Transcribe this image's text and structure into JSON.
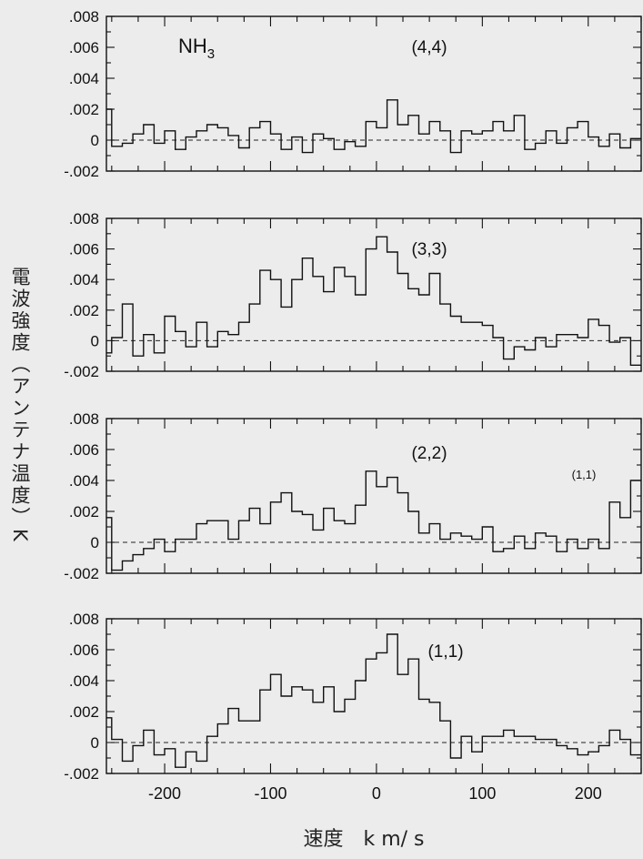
{
  "ylabel": "電波強度（アンテナ温度）K",
  "xlabel": "速度　k m/ s",
  "molecule_label": {
    "base": "NH",
    "subscript": "3"
  },
  "extra_annotation": "(1,1)",
  "x_tick_labels": [
    "-200",
    "-100",
    "0",
    "100",
    "200"
  ],
  "y_tick_labels": [
    ".008",
    ".006",
    ".004",
    ".002",
    "0",
    "-.002"
  ],
  "chart_data": [
    {
      "type": "line",
      "step": true,
      "title": "(4,4)",
      "xlim": [
        -255,
        250
      ],
      "ylim": [
        -0.002,
        0.008
      ],
      "y_ticks": [
        -0.002,
        0,
        0.002,
        0.004,
        0.006,
        0.008
      ],
      "x_ticks": [
        -200,
        -100,
        0,
        100,
        200
      ],
      "reference_line": 0,
      "x": [
        -255,
        -245,
        -235,
        -225,
        -215,
        -205,
        -195,
        -185,
        -175,
        -165,
        -155,
        -145,
        -135,
        -125,
        -115,
        -105,
        -95,
        -85,
        -75,
        -65,
        -55,
        -45,
        -35,
        -25,
        -15,
        -5,
        5,
        15,
        25,
        35,
        45,
        55,
        65,
        75,
        85,
        95,
        105,
        115,
        125,
        135,
        145,
        155,
        165,
        175,
        185,
        195,
        205,
        215,
        225,
        235,
        245
      ],
      "values": [
        0.002,
        -0.0004,
        -0.0002,
        0.0004,
        0.001,
        -0.0002,
        0.0006,
        -0.0006,
        0.0002,
        0.0006,
        0.001,
        0.0008,
        0.0003,
        -0.0005,
        0.0008,
        0.0012,
        0.0004,
        -0.0006,
        0.0002,
        -0.0008,
        0.0004,
        0.0001,
        -0.0006,
        -0.0001,
        -0.0004,
        0.0012,
        0.0008,
        0.0026,
        0.001,
        0.0016,
        0.0004,
        0.0012,
        0.0006,
        -0.0008,
        0.0006,
        0.0004,
        0.0006,
        0.0012,
        0.0006,
        0.0016,
        -0.0006,
        -0.0002,
        0.0006,
        -0.0002,
        0.0008,
        0.0012,
        0.0002,
        -0.0004,
        0.0004,
        -0.0005,
        0.0001
      ]
    },
    {
      "type": "line",
      "step": true,
      "title": "(3,3)",
      "xlim": [
        -255,
        250
      ],
      "ylim": [
        -0.002,
        0.008
      ],
      "y_ticks": [
        -0.002,
        0,
        0.002,
        0.004,
        0.006,
        0.008
      ],
      "x_ticks": [
        -200,
        -100,
        0,
        100,
        200
      ],
      "reference_line": 0,
      "x": [
        -255,
        -245,
        -235,
        -225,
        -215,
        -205,
        -195,
        -185,
        -175,
        -165,
        -155,
        -145,
        -135,
        -125,
        -115,
        -105,
        -95,
        -85,
        -75,
        -65,
        -55,
        -45,
        -35,
        -25,
        -15,
        -5,
        5,
        15,
        25,
        35,
        45,
        55,
        65,
        75,
        85,
        95,
        105,
        115,
        125,
        135,
        145,
        155,
        165,
        175,
        185,
        195,
        205,
        215,
        225,
        235,
        245
      ],
      "values": [
        -0.0008,
        0.0002,
        0.0024,
        -0.001,
        0.0004,
        -0.0008,
        0.0016,
        0.0006,
        -0.0004,
        0.0012,
        -0.0004,
        0.0006,
        0.0004,
        0.0012,
        0.0024,
        0.0046,
        0.004,
        0.0022,
        0.004,
        0.0054,
        0.0042,
        0.0032,
        0.0048,
        0.0042,
        0.003,
        0.006,
        0.0068,
        0.0058,
        0.0044,
        0.0034,
        0.003,
        0.0044,
        0.0024,
        0.0016,
        0.0012,
        0.0012,
        0.001,
        0.0002,
        -0.0012,
        -0.0004,
        -0.0006,
        0.0002,
        -0.0004,
        0.0004,
        0.0004,
        0.0002,
        0.0014,
        0.001,
        -0.0001,
        0.0002,
        -0.0016
      ]
    },
    {
      "type": "line",
      "step": true,
      "title": "(2,2)",
      "xlim": [
        -255,
        250
      ],
      "ylim": [
        -0.002,
        0.008
      ],
      "y_ticks": [
        -0.002,
        0,
        0.002,
        0.004,
        0.006,
        0.008
      ],
      "x_ticks": [
        -200,
        -100,
        0,
        100,
        200
      ],
      "reference_line": 0,
      "x": [
        -255,
        -245,
        -235,
        -225,
        -215,
        -205,
        -195,
        -185,
        -175,
        -165,
        -155,
        -145,
        -135,
        -125,
        -115,
        -105,
        -95,
        -85,
        -75,
        -65,
        -55,
        -45,
        -35,
        -25,
        -15,
        -5,
        5,
        15,
        25,
        35,
        45,
        55,
        65,
        75,
        85,
        95,
        105,
        115,
        125,
        135,
        145,
        155,
        165,
        175,
        185,
        195,
        205,
        215,
        225,
        235,
        245
      ],
      "values": [
        0.0016,
        -0.0018,
        -0.0012,
        -0.0008,
        -0.0004,
        0.0002,
        -0.0006,
        0.0002,
        0.0002,
        0.0012,
        0.0014,
        0.0014,
        0.0002,
        0.0014,
        0.0022,
        0.0012,
        0.0026,
        0.0032,
        0.002,
        0.0018,
        0.0008,
        0.0022,
        0.0014,
        0.0012,
        0.0024,
        0.0046,
        0.0036,
        0.0042,
        0.0032,
        0.002,
        0.0006,
        0.0012,
        0.0002,
        0.0006,
        0.0004,
        0.0002,
        0.001,
        -0.0006,
        -0.0004,
        0.0004,
        -0.0004,
        0.0006,
        0.0004,
        -0.0006,
        0.0002,
        -0.0004,
        0.0002,
        -0.0004,
        0.0026,
        0.0016,
        0.004
      ]
    },
    {
      "type": "line",
      "step": true,
      "title": "(1,1)",
      "xlim": [
        -255,
        250
      ],
      "ylim": [
        -0.002,
        0.008
      ],
      "y_ticks": [
        -0.002,
        0,
        0.002,
        0.004,
        0.006,
        0.008
      ],
      "x_ticks": [
        -200,
        -100,
        0,
        100,
        200
      ],
      "reference_line": 0,
      "x": [
        -255,
        -245,
        -235,
        -225,
        -215,
        -205,
        -195,
        -185,
        -175,
        -165,
        -155,
        -145,
        -135,
        -125,
        -115,
        -105,
        -95,
        -85,
        -75,
        -65,
        -55,
        -45,
        -35,
        -25,
        -15,
        -5,
        5,
        15,
        25,
        35,
        45,
        55,
        65,
        75,
        85,
        95,
        105,
        115,
        125,
        135,
        145,
        155,
        165,
        175,
        185,
        195,
        205,
        215,
        225,
        235,
        245
      ],
      "values": [
        0.0016,
        0.0002,
        -0.0012,
        -0.0002,
        0.0008,
        -0.0008,
        -0.0004,
        -0.0016,
        -0.0006,
        -0.0012,
        0.0004,
        0.0012,
        0.0022,
        0.0014,
        0.0014,
        0.0034,
        0.0044,
        0.003,
        0.0036,
        0.0034,
        0.0026,
        0.0036,
        0.002,
        0.0028,
        0.004,
        0.0054,
        0.0058,
        0.007,
        0.0044,
        0.0054,
        0.0028,
        0.0026,
        0.0014,
        -0.001,
        0.0004,
        -0.0006,
        0.0004,
        0.0004,
        0.0008,
        0.0004,
        0.0004,
        0.0002,
        0.0002,
        -0.0002,
        -0.0004,
        -0.0008,
        -0.0006,
        -0.0002,
        0.0008,
        0.0002,
        -0.0008
      ]
    }
  ]
}
